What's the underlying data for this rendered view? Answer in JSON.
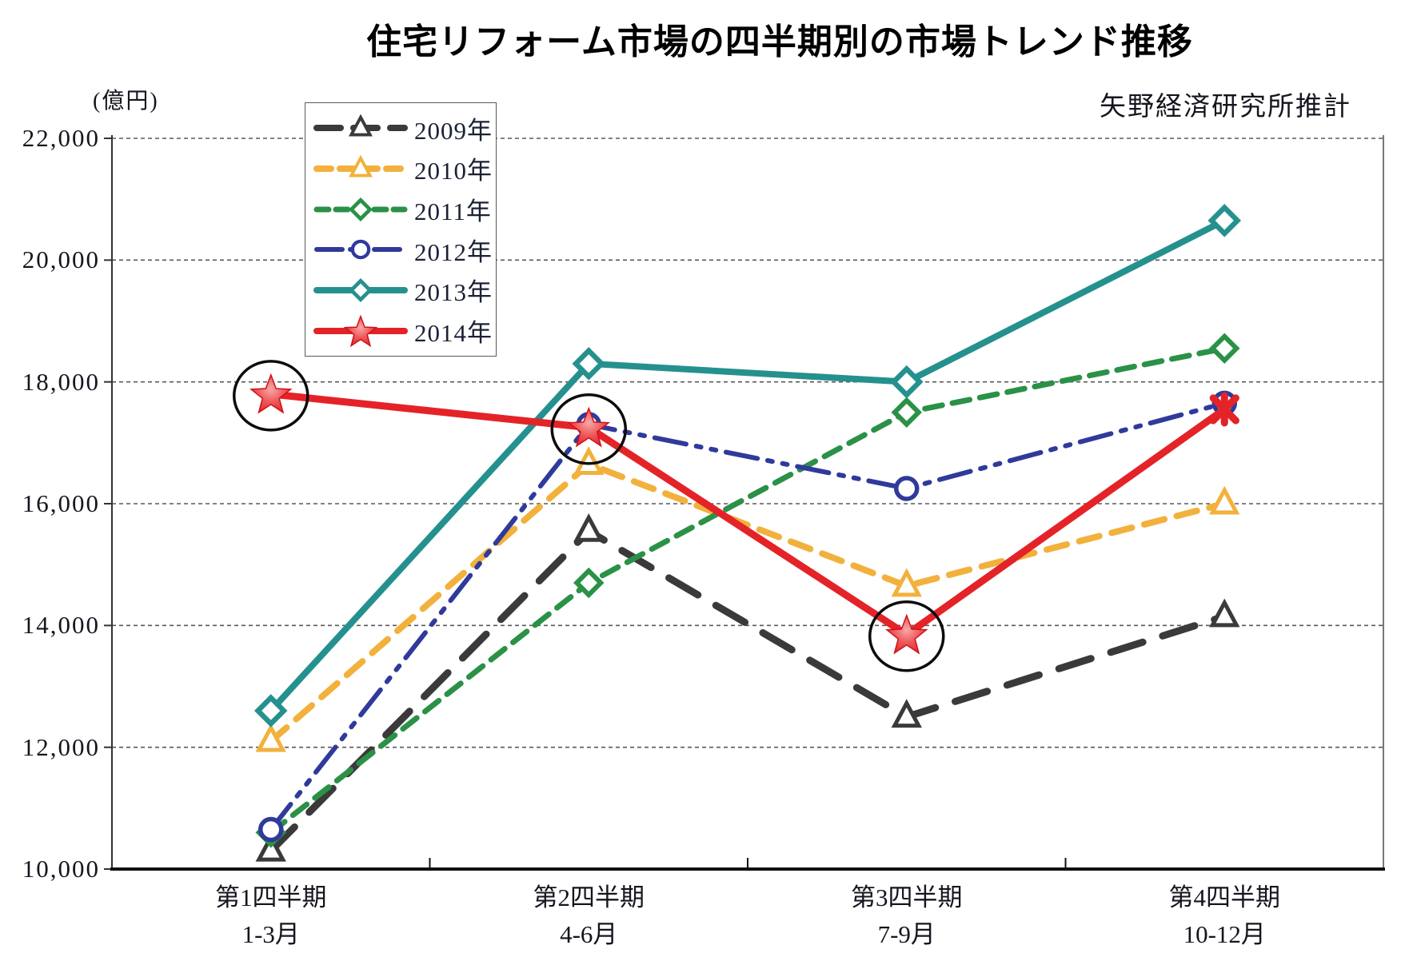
{
  "title": "住宅リフォーム市場の四半期別の市場トレンド推移",
  "source_note": "矢野経済研究所推計",
  "unit_label": "(億円)",
  "chart_data": {
    "type": "line",
    "title": "住宅リフォーム市場の四半期別の市場トレンド推移",
    "ylabel": "(億円)",
    "ylim": [
      10000,
      22000
    ],
    "grid": "horizontal-dashed",
    "legend_position": "top-left-inside",
    "yticklabels": [
      "22,000",
      "20,000",
      "18,000",
      "16,000",
      "14,000",
      "12,000",
      "10,000"
    ],
    "ytick_values": [
      22000,
      20000,
      18000,
      16000,
      14000,
      12000,
      10000
    ],
    "categories": [
      {
        "line1": "第1四半期",
        "line2": "1-3月"
      },
      {
        "line1": "第2四半期",
        "line2": "4-6月"
      },
      {
        "line1": "第3四半期",
        "line2": "7-9月"
      },
      {
        "line1": "第4四半期",
        "line2": "10-12月"
      }
    ],
    "series": [
      {
        "name": "2009年",
        "color": "#3a3a3a",
        "line": "long-dash",
        "marker": "triangle",
        "values": [
          10300,
          15550,
          12500,
          14150
        ]
      },
      {
        "name": "2010年",
        "color": "#f2b13c",
        "line": "dash",
        "marker": "triangle",
        "values": [
          12100,
          16650,
          14650,
          16000
        ]
      },
      {
        "name": "2011年",
        "color": "#2a9147",
        "line": "dash",
        "marker": "diamond",
        "values": [
          10600,
          14700,
          17500,
          18550
        ]
      },
      {
        "name": "2012年",
        "color": "#2f3a9b",
        "line": "dash-dot-dot",
        "marker": "circle",
        "values": [
          10650,
          17300,
          16250,
          17650
        ]
      },
      {
        "name": "2013年",
        "color": "#25918e",
        "line": "solid",
        "marker": "diamond",
        "values": [
          12600,
          18300,
          18000,
          20650
        ]
      },
      {
        "name": "2014年",
        "color": "#e42328",
        "line": "solid",
        "marker": "star",
        "values": [
          17800,
          17250,
          13850,
          17550
        ]
      }
    ],
    "annotations": {
      "circled_points": {
        "series_index": 5,
        "points": [
          0,
          1,
          2
        ],
        "style": "black-ellipse-outline"
      }
    }
  }
}
